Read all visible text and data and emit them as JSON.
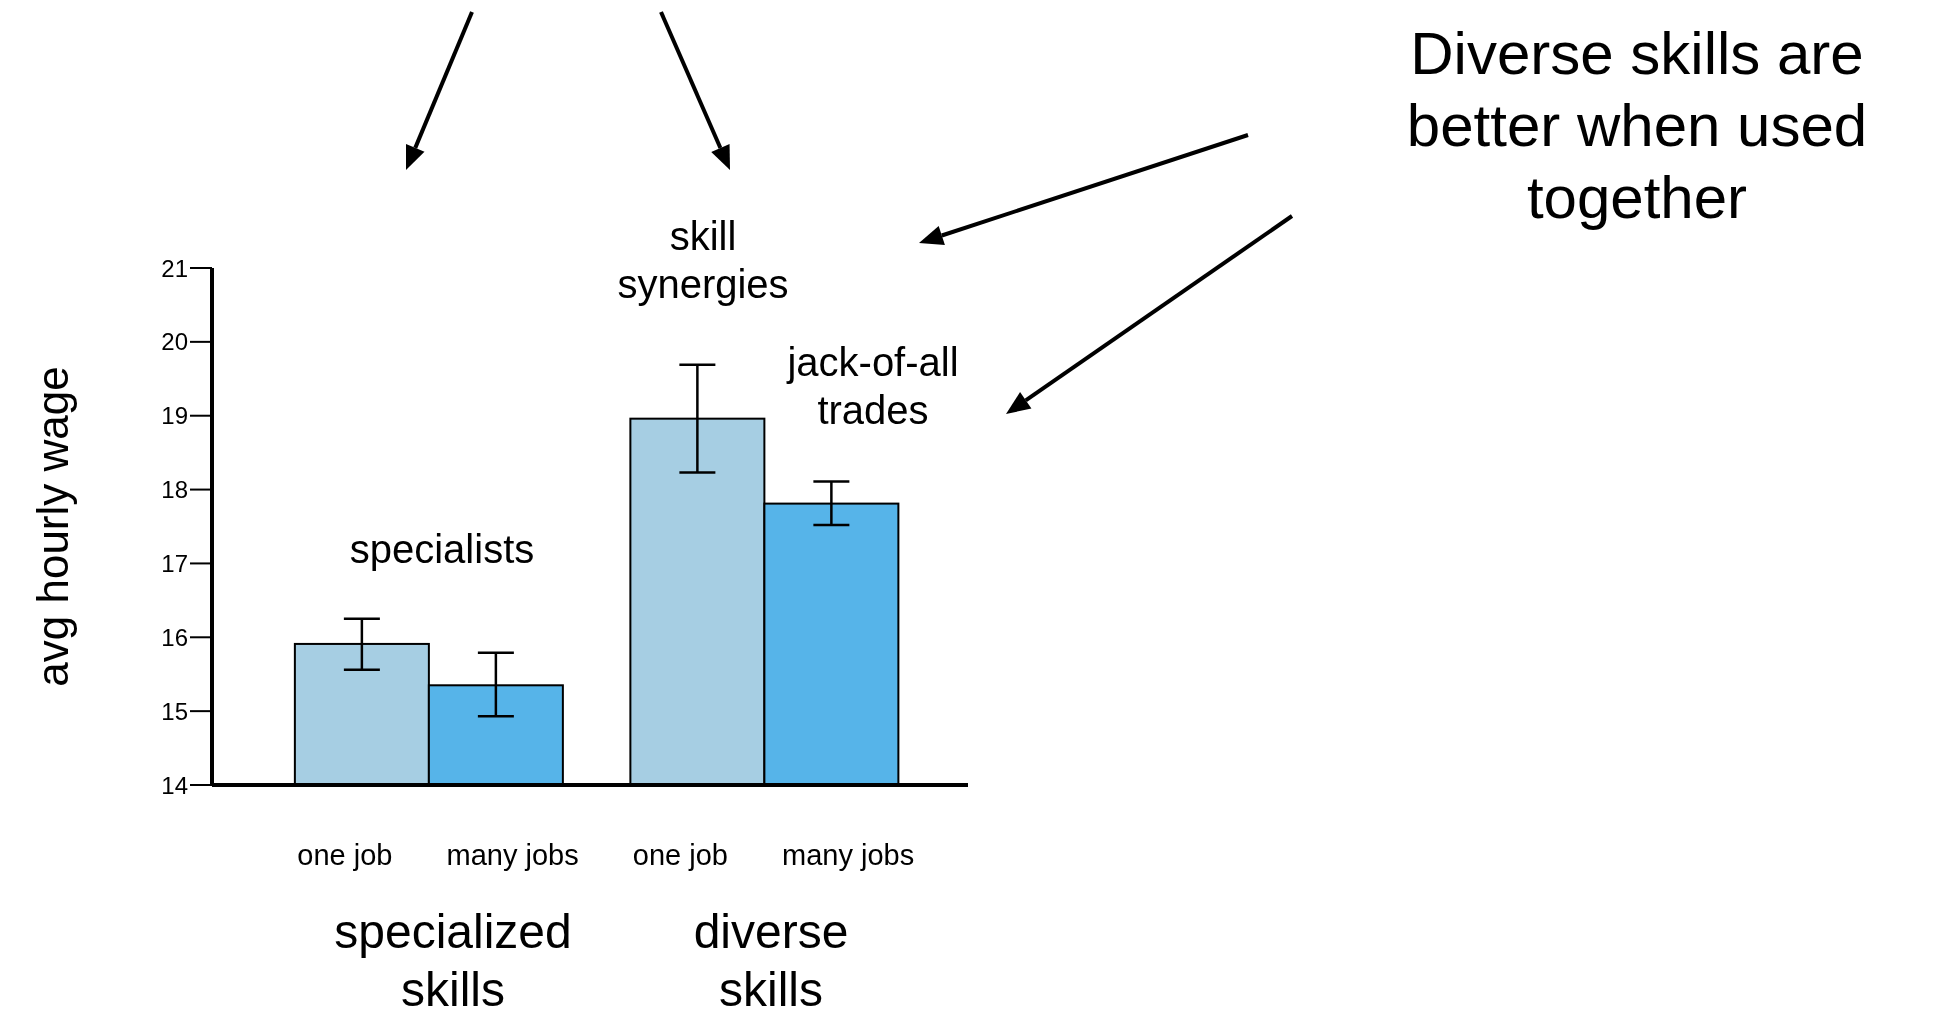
{
  "chart_data": {
    "type": "bar",
    "categories": [
      "one job",
      "many jobs",
      "one job",
      "many jobs"
    ],
    "values": [
      15.91,
      15.35,
      18.96,
      17.81
    ],
    "colors": [
      "#a6cee3",
      "#56b4e9",
      "#a6cee3",
      "#56b4e9"
    ],
    "errors": [
      [
        15.56,
        16.25
      ],
      [
        14.93,
        15.79
      ],
      [
        18.23,
        19.69
      ],
      [
        17.52,
        18.11
      ]
    ],
    "ylabel": "avg hourly wage",
    "ylim": [
      14,
      21
    ],
    "yticks": [
      14,
      15,
      16,
      17,
      18,
      19,
      20,
      21
    ],
    "annotations": [
      "specialists",
      "skill synergies",
      "jack-of-all trades",
      "Diverse skills are better when used together",
      "specialized skills",
      "diverse skills"
    ]
  }
}
